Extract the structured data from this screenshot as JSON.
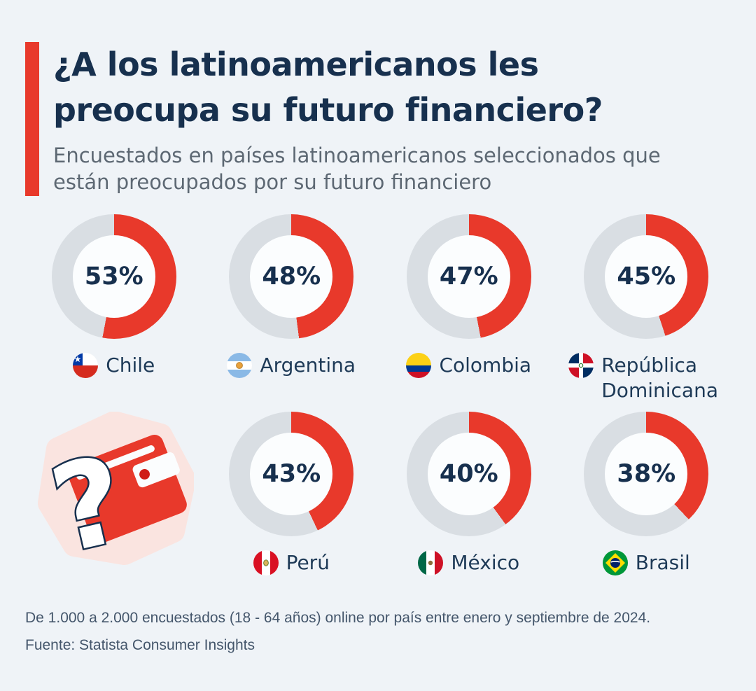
{
  "header": {
    "title": "¿A los latinoamericanos les preocupa su futuro financiero?",
    "subtitle": "Encuestados en países latinoamericanos seleccionados que están preocupados por su futuro financiero"
  },
  "chart_data": {
    "type": "donut",
    "title": "¿A los latinoamericanos les preocupa su futuro financiero?",
    "subtitle": "Encuestados en países latinoamericanos seleccionados que están preocupados por su futuro financiero",
    "unit": "%",
    "value_range": [
      0,
      100
    ],
    "start_angle": "top",
    "direction": "clockwise",
    "series": [
      {
        "country": "Chile",
        "value": 53,
        "flag": "chile"
      },
      {
        "country": "Argentina",
        "value": 48,
        "flag": "argentina"
      },
      {
        "country": "Colombia",
        "value": 47,
        "flag": "colombia"
      },
      {
        "country": "República Dominicana",
        "value": 45,
        "flag": "dominican-republic"
      },
      {
        "country": "Perú",
        "value": 43,
        "flag": "peru"
      },
      {
        "country": "México",
        "value": 40,
        "flag": "mexico"
      },
      {
        "country": "Brasil",
        "value": 38,
        "flag": "brazil"
      }
    ],
    "colors": {
      "filled": "#e8392b",
      "remainder": "#d9dee3",
      "accent_bar": "#e8392b",
      "value_text": "#17304e",
      "background": "#eff3f7"
    },
    "layout": {
      "grid": "2 rows x 4 columns",
      "legend": "none",
      "illustration": "red wallet with question mark, row 2 column 1"
    }
  },
  "footer": {
    "note": "De 1.000 a 2.000 encuestados (18 - 64 años) online por país entre enero y septiembre de 2024.",
    "source": "Fuente: Statista Consumer Insights"
  }
}
